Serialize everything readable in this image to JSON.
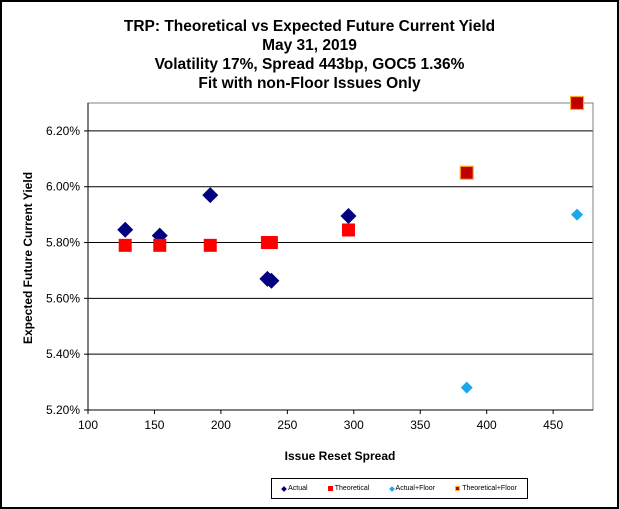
{
  "chart_data": {
    "type": "scatter",
    "title_lines": [
      "TRP: Theoretical vs Expected Future Current Yield",
      "May 31, 2019",
      "Volatility  17%, Spread 443bp, GOC5 1.36%",
      "Fit with non-Floor Issues Only"
    ],
    "xlabel": "Issue  Reset  Spread",
    "ylabel": "Expected Future Current Yield",
    "xlim": [
      100,
      480
    ],
    "ylim": [
      5.2,
      6.3
    ],
    "xticks": [
      100,
      150,
      200,
      250,
      300,
      350,
      400,
      450
    ],
    "yticks": [
      5.2,
      5.4,
      5.6,
      5.8,
      6.0,
      6.2
    ],
    "ytick_labels": [
      "5.20%",
      "5.40%",
      "5.60%",
      "5.80%",
      "6.00%",
      "6.20%"
    ],
    "grid": "horizontal",
    "legend_position": "bottom",
    "series": [
      {
        "name": "Actual",
        "marker": "diamond",
        "color": "#000080",
        "points": [
          [
            128,
            5.846
          ],
          [
            154,
            5.825
          ],
          [
            192,
            5.97
          ],
          [
            235,
            5.67
          ],
          [
            238,
            5.663
          ],
          [
            296,
            5.895
          ]
        ]
      },
      {
        "name": "Theoretical",
        "marker": "square",
        "color": "#ff0000",
        "points": [
          [
            128,
            5.79
          ],
          [
            154,
            5.79
          ],
          [
            192,
            5.79
          ],
          [
            235,
            5.8
          ],
          [
            238,
            5.8
          ],
          [
            296,
            5.845
          ]
        ]
      },
      {
        "name": "Actual+Floor",
        "marker": "diamond",
        "color": "#1ca8e8",
        "points": [
          [
            385,
            5.28
          ],
          [
            468,
            5.9
          ]
        ]
      },
      {
        "name": "Theoretical+Floor",
        "marker": "square",
        "color": "#c00000",
        "border": "#ffb020",
        "points": [
          [
            385,
            6.05
          ],
          [
            468,
            6.3
          ]
        ]
      }
    ]
  }
}
